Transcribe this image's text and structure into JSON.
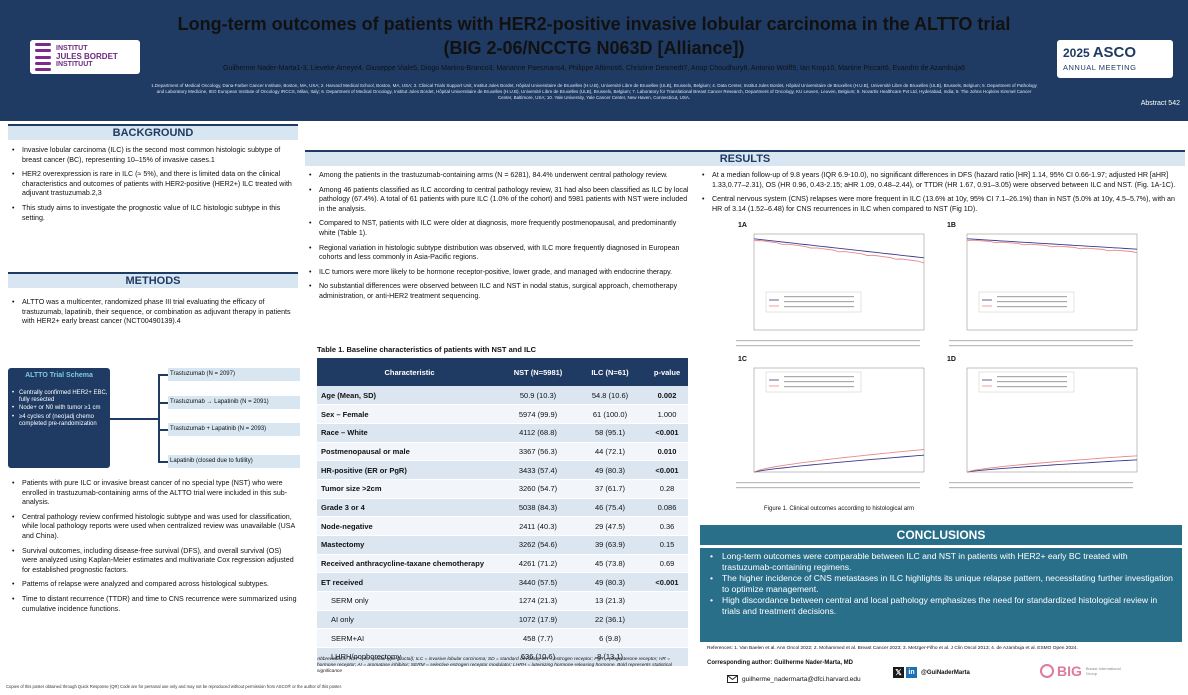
{
  "header": {
    "title_line1": "Long-term outcomes of patients with HER2-positive invasive lobular carcinoma in the ALTTO trial",
    "title_line2": "(BIG 2-06/NCCTG N063D [Alliance])",
    "authors": "Guilherme Nader-Marta1-3, Lieveke Ameye4, Giuseppe Viale5, Diogo Martins-Branco3, Marianne Paesmans4, Philippe Aftimos6, Christine Desmedt7, Anup Choudhury8, Antonio Wolff9, Ian Krop10, Martine Piccart6, Evandro de Azambuja6",
    "affiliations": "1.Department of Medical Oncology, Dana-Farber Cancer Institute, Boston, MA, USA; 2. Harvard Medical School, Boston, MA, USA; 3. Clinical Trials Support Unit, Institut Jules Bordet, Hôpital Universitaire de Bruxelles (H.U.B), Université Libre de Bruxelles (ULB), Brussels, Belgium; 4. Data Center, Institut Jules Bordet, Hôpital Universitaire de Bruxelles (H.U.B), Université Libre de Bruxelles (ULB), Brussels, Belgium; 5. Department of Pathology and Laboratory Medicine, IEO European Institute of Oncology IRCCS, Milan, Italy; 6. Department of Medical Oncology, Institut Jules Bordet, Hôpital Universitaire de Bruxelles (H.U.B), Université Libre de Bruxelles (ULB), Brussels, Belgium; 7. Laboratory for Translational Breast Cancer Research, Department of Oncology, KU Leuven, Leuven, Belgium; 8. Novartis Healthcare Pvt Ltd, Hyderabad, India; 9. The Johns Hopkins Kimmel Cancer Center, Baltimore, USA; 10. Yale University, Yale Cancer Center, New Haven, Connecticut, USA.",
    "abstract": "Abstract 542",
    "logo_left_lines": [
      "INSTITUT",
      "JULES BORDET",
      "INSTITUUT"
    ],
    "asco_year": "2025",
    "asco_name": "ASCO",
    "asco_sub": "ANNUAL MEETING"
  },
  "background": {
    "heading": "BACKGROUND",
    "bullets": [
      "Invasive lobular carcinoma (ILC) is the second most common histologic subtype of breast cancer (BC), representing 10–15% of invasive cases.1",
      "HER2 overexpression is rare in ILC (≈ 5%), and there is limited data on the clinical characteristics and outcomes of patients with HER2-positive (HER2+) ILC treated with adjuvant trastuzumab.2,3",
      "This study aims to investigate the prognostic value of ILC histologic subtype in this setting."
    ]
  },
  "methods": {
    "heading": "METHODS",
    "bullets_top": [
      "ALTTO was a multicenter, randomized phase III trial evaluating the efficacy of trastuzumab, lapatinib, their sequence, or combination as adjuvant therapy in patients with HER2+ early breast cancer (NCT00490139).4"
    ],
    "schema_title": "ALTTO Trial Schema",
    "schema_items": [
      "Centrally confirmed HER2+ EBC, fully resected",
      "Node+ or N0 with tumor ≥1 cm",
      "≥4 cycles of (neo)adj chemo completed pre-randomization"
    ],
    "arms": [
      "Trastuzumab (N = 2097)",
      "Trastuzumab → Lapatinib (N = 2091)",
      "Trastuzumab + Lapatinib (N = 2093)",
      "Lapatinib (closed due to futility)"
    ],
    "bullets_bottom": [
      "Patients with pure ILC or invasive breast cancer of no special type (NST) who were enrolled in trastuzumab-containing arms of the ALTTO trial were included in this sub-analysis.",
      "Central pathology review confirmed histologic subtype and was used for classification, while local pathology reports were used when centralized review was unavailable (USA and China).",
      "Survival outcomes, including disease-free survival (DFS), and overall survival (OS) were analyzed using Kaplan-Meier estimates and multivariate Cox regression adjusted for established prognostic factors.",
      "Patterns of relapse were analyzed and compared across histological subtypes.",
      "Time to distant recurrence (TTDR) and time to CNS recurrence were summarized using cumulative incidence functions."
    ]
  },
  "results_left": {
    "bullets": [
      "Among the patients in the trastuzumab-containing arms (N = 6281), 84.4% underwent central pathology review.",
      "Among 46 patients classified as ILC according to central pathology review, 31 had also been classified as ILC by local pathology (67.4%). A total of 61 patients with pure ILC (1.0% of the cohort) and 5981 patients with NST were included in the analysis.",
      "Compared to NST, patients with ILC were older at diagnosis, more frequently postmenopausal, and predominantly white (Table 1).",
      "Regional variation in histologic subtype distribution was observed, with ILC more frequently diagnosed in European cohorts and less commonly in Asia-Pacific regions.",
      "ILC tumors were more likely to be hormone receptor-positive, lower grade, and managed with endocrine therapy.",
      "No substantial differences were observed between ILC and NST in nodal status, surgical approach, chemotherapy administration, or anti-HER2 treatment sequencing."
    ]
  },
  "table": {
    "caption": "Table 1. Baseline characteristics of patients with NST and ILC",
    "headers": [
      "Characteristic",
      "NST (N=5981)",
      "ILC (N=61)",
      "p-value"
    ],
    "rows": [
      [
        "Age (Mean, SD)",
        "50.9 (10.3)",
        "54.8 (10.6)",
        "0.002"
      ],
      [
        "Sex – Female",
        "5974 (99.9)",
        "61 (100.0)",
        "1.000"
      ],
      [
        "Race – White",
        "4112 (68.8)",
        "58 (95.1)",
        "<0.001"
      ],
      [
        "Postmenopausal or male",
        "3367 (56.3)",
        "44 (72.1)",
        "0.010"
      ],
      [
        "HR-positive (ER or PgR)",
        "3433 (57.4)",
        "49 (80.3)",
        "<0.001"
      ],
      [
        "Tumor size >2cm",
        "3260 (54.7)",
        "37 (61.7)",
        "0.28"
      ],
      [
        "Grade 3 or 4",
        "5038 (84.3)",
        "46 (75.4)",
        "0.086"
      ],
      [
        "Node-negative",
        "2411 (40.3)",
        "29 (47.5)",
        "0.36"
      ],
      [
        "Mastectomy",
        "3262 (54.6)",
        "39 (63.9)",
        "0.15"
      ],
      [
        "Received anthracycline-taxane chemotherapy",
        "4261 (71.2)",
        "45 (73.8)",
        "0.69"
      ],
      [
        "ET received",
        "3440 (57.5)",
        "49 (80.3)",
        "<0.001"
      ],
      [
        "SERM only",
        "1274 (21.3)",
        "13 (21.3)",
        ""
      ],
      [
        "AI only",
        "1072 (17.9)",
        "22 (36.1)",
        ""
      ],
      [
        "SERM+AI",
        "458 (7.7)",
        "6 (9.8)",
        ""
      ],
      [
        "LHRH/oophorectomy",
        "636 (10.6)",
        "8 (13.1)",
        ""
      ]
    ],
    "abbreviations": "Abbreviations: NST = no special type (ductal); ILC = invasive lobular carcinoma; SD = standard deviation; ER = estrogen receptor; PgR = progesterone receptor; HR = hormone receptor; AI = aromatase inhibitor; SERM = selective estrogen receptor modulator; LHRH = luteinizing hormone-releasing hormone. Bold represents statistical significance"
  },
  "results": {
    "heading": "RESULTS",
    "bullets": [
      "At a median follow-up of 9.8 years (IQR 6.9-10.0), no significant differences in DFS (hazard ratio [HR] 1.14, 95% CI 0.66-1.97; adjusted HR [aHR] 1.33,0.77–2.31), OS (HR 0.96, 0.43-2.15; aHR 1.09, 0.48–2.44), or TTDR (HR 1.67, 0.91–3.05) were observed between ILC and NST. (Fig. 1A-1C).",
      "Central nervous system (CNS) relapses were more frequent in ILC (13.6% at 10y, 95% CI 7.1–26.1%) than in NST (5.0% at 10y, 4.5–5.7%), with an HR of 3.14 (1.52–6.48) for CNS recurrences in ILC when compared to NST (Fig 1D)."
    ],
    "plot_labels": [
      "1A",
      "1B",
      "1C",
      "1D"
    ],
    "figure_caption": "Figure 1. Clinical outcomes according to histological arm"
  },
  "conclusions": {
    "heading": "CONCLUSIONS",
    "bullets": [
      "Long-term outcomes were comparable between ILC and NST in patients with HER2+ early BC treated with trastuzumab-containing regimens.",
      "The higher incidence of CNS metastases in ILC highlights its unique relapse pattern, necessitating further investigation to optimize management.",
      "High discordance between central and local pathology emphasizes the need for standardized histological review in trials and treatment decisions."
    ]
  },
  "footer": {
    "references": "References: 1. Van Baelen et al. Ann Oncol 2022; 2. Mohammed et al. Breast Cancer 2023; 3. Metzger-Filho et al. J Clin Oncol 2013; 4. de Azambuja et al. ESMO Open 2024.",
    "corresponding": "Corresponding author: Guilherme Nader-Marta, MD",
    "email": "guilherme_nadermarta@dfci.harvard.edu",
    "handle": "@GuiNaderMarta",
    "big_logo": "BIG",
    "big_sub": "Breast International Group",
    "copyright": "Copies of this poster obtained through Quick Response (QR) Code are for personal use only and may not be reproduced without permission from ASCO® or the author of this poster."
  },
  "colors": {
    "navy": "#1f3b63",
    "teal": "#2a6f8a",
    "light_blue": "#d7e6f1",
    "nst_line": "#3a3a8c",
    "ilc_line": "#e88a8a"
  }
}
